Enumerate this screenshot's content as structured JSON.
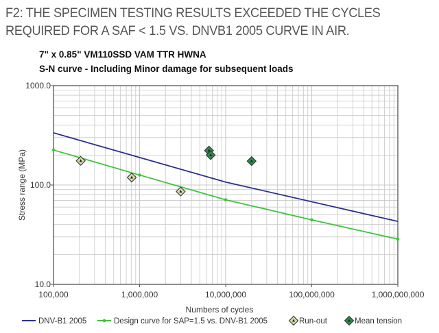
{
  "caption": {
    "line1": "F2: THE SPECIMEN TESTING RESULTS EXCEEDED THE CYCLES",
    "line2": "REQUIRED FOR A SAF < 1.5 VS. DNVB1 2005 CURVE IN AIR."
  },
  "chart_data": {
    "type": "line",
    "title": "7\" x 0.85\" VM110SSD VAM TTR HWNA",
    "subtitle": "S-N curve - Including Minor damage for subsequent loads",
    "xlabel": "Numbers of cycles",
    "ylabel": "Stress range (MPa)",
    "xscale": "log",
    "yscale": "log",
    "xlim": [
      100000,
      1000000000
    ],
    "ylim": [
      10,
      1000
    ],
    "xticks": [
      "100,000",
      "1,000,000",
      "10,000,000",
      "100,000,000",
      "1,000,000,000"
    ],
    "yticks": [
      "1000.0",
      "100.0",
      "10.0"
    ],
    "grid": true,
    "legend_position": "bottom",
    "series": [
      {
        "name": "DNV-B1 2005",
        "type": "line",
        "color": "#2b2f8f",
        "x": [
          100000,
          10000000,
          1000000000
        ],
        "y": [
          335,
          107,
          43
        ]
      },
      {
        "name": "Design curve for SAP=1.5 vs. DNV-B1 2005",
        "type": "line-markers",
        "color": "#3cc43c",
        "x": [
          100000,
          1000000,
          10000000,
          100000000,
          1000000000
        ],
        "y": [
          225,
          126,
          71,
          44.6,
          28.5
        ]
      },
      {
        "name": "Run-out",
        "type": "scatter",
        "color": "#d8d8a8",
        "x": [
          207000,
          810000,
          3000000
        ],
        "y": [
          175,
          119,
          86
        ]
      },
      {
        "name": "Mean tension",
        "type": "scatter",
        "color": "#2e8b4e",
        "x": [
          6400000,
          6700000,
          20000000
        ],
        "y": [
          222,
          200,
          174
        ]
      }
    ]
  }
}
